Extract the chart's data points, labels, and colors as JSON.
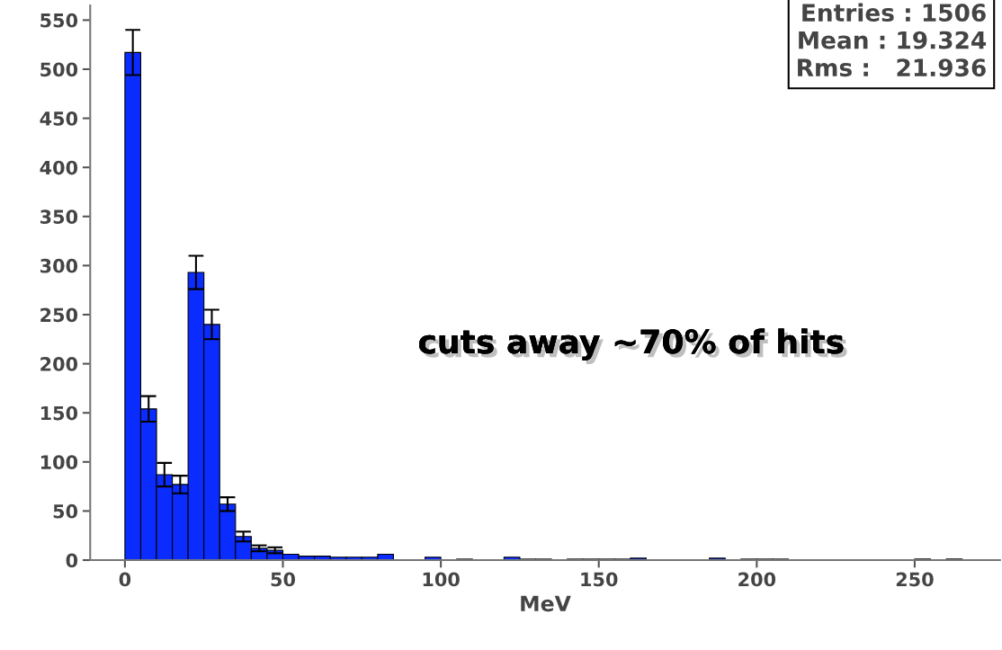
{
  "chart_data": {
    "type": "histogram",
    "xlabel": "MeV",
    "bins": [
      0,
      5,
      10,
      15,
      20,
      25,
      30,
      35,
      40,
      45,
      50,
      55,
      60,
      65,
      70,
      75,
      80,
      85,
      90,
      95,
      100,
      105,
      110,
      115,
      120,
      125,
      130,
      135,
      140,
      145,
      150,
      155,
      160,
      165,
      170,
      175,
      180,
      185,
      190,
      195,
      200,
      205,
      210,
      215,
      220,
      225,
      230,
      235,
      240,
      245,
      250,
      255,
      260,
      265,
      270
    ],
    "values": [
      517,
      154,
      87,
      77,
      293,
      240,
      57,
      24,
      12,
      10,
      6,
      4,
      4,
      3,
      3,
      3,
      6,
      0,
      0,
      3,
      0,
      1,
      0,
      0,
      3,
      1,
      1,
      0,
      1,
      1,
      1,
      1,
      2,
      0,
      0,
      0,
      0,
      2,
      0,
      1,
      1,
      1,
      0,
      0,
      0,
      0,
      0,
      0,
      0,
      0,
      1,
      0,
      1,
      0
    ],
    "errors": [
      23,
      13,
      12,
      9,
      17,
      15,
      7,
      5,
      3,
      3,
      null,
      null,
      null,
      null,
      null,
      null,
      null,
      null,
      null,
      null,
      null,
      null,
      null,
      null,
      null,
      null,
      null,
      null,
      null,
      null,
      null,
      null,
      null,
      null,
      null,
      null,
      null,
      null,
      null,
      null,
      null,
      null,
      null,
      null,
      null,
      null,
      null,
      null,
      null,
      null,
      null,
      null,
      null,
      null
    ],
    "color": "#0a2cff",
    "xlim": [
      -11,
      277
    ],
    "ylim": [
      0,
      565
    ],
    "xticks": [
      0,
      50,
      100,
      150,
      200,
      250
    ],
    "yticks": [
      0,
      50,
      100,
      150,
      200,
      250,
      300,
      350,
      400,
      450,
      500,
      550
    ],
    "grid": false,
    "legend": false,
    "annotations": [
      "Entries : 1506\nMean : 19.324\nRms :   21.936",
      "cuts away ~70% of hits"
    ]
  }
}
